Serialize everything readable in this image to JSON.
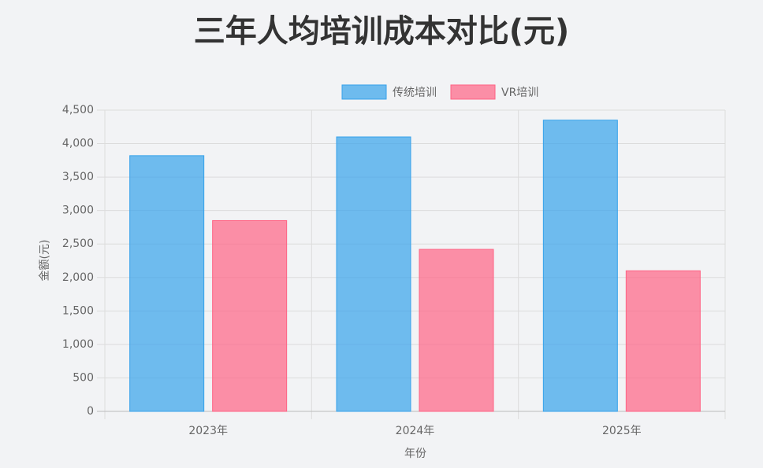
{
  "chart_data": {
    "type": "bar",
    "title": "三年人均培训成本对比(元)",
    "x_label": "年份",
    "y_label": "金额(元)",
    "categories": [
      "2023年",
      "2024年",
      "2025年"
    ],
    "series": [
      {
        "name": "传统培训",
        "color": "#36a2eb",
        "values": [
          3820,
          4100,
          4350
        ]
      },
      {
        "name": "VR培训",
        "color": "#ff6384",
        "values": [
          2850,
          2420,
          2100
        ]
      }
    ],
    "ylim": [
      0,
      4500
    ],
    "yticks": [
      0,
      500,
      {
        "value": 1000,
        "label": "1,000"
      },
      {
        "value": 1500,
        "label": "1,500"
      },
      {
        "value": 2000,
        "label": "2,000"
      },
      {
        "value": 2500,
        "label": "2,500"
      },
      {
        "value": 3000,
        "label": "3,000"
      },
      {
        "value": 3500,
        "label": "3,500"
      },
      {
        "value": 4000,
        "label": "4,000"
      },
      {
        "value": 4500,
        "label": "4,500"
      }
    ],
    "grid": true,
    "legend": "top"
  }
}
